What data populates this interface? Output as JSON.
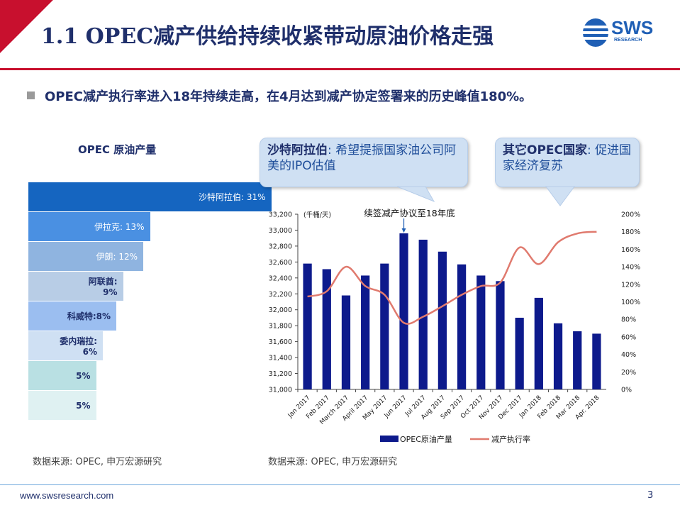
{
  "header": {
    "title": "1.1 OPEC减产供给持续收紧带动原油价格走强",
    "logo_text": "SWS",
    "logo_sub": "RESEARCH",
    "accent_color": "#c8102e",
    "title_color": "#1f2f6b"
  },
  "bullet": "OPEC减产执行率进入18年持续走高，在4月达到减产协定签署来的历史峰值180%。",
  "left_panel": {
    "title": "OPEC 原油产量",
    "bars": [
      {
        "label": "沙特阿拉伯:  31%",
        "share": 31,
        "color": "#1565c0",
        "text_color": "#ffffff"
      },
      {
        "label": "伊拉克: 13%",
        "share": 13,
        "color": "#4a90e2",
        "text_color": "#ffffff"
      },
      {
        "label": "伊朗: 12%",
        "share": 12,
        "color": "#8fb4e0",
        "text_color": "#ffffff"
      },
      {
        "label_line1": "阿联酋:",
        "label_line2": "9%",
        "share": 9,
        "color": "#b8cde6",
        "text_color": "#1f2f6b"
      },
      {
        "label": "科威特:8%",
        "share": 8,
        "color": "#9bbef0",
        "text_color": "#1f2f6b"
      },
      {
        "label_line1": "委内瑞拉:",
        "label_line2": "6%",
        "share": 6,
        "color": "#cfe0f3",
        "text_color": "#1f2f6b"
      },
      {
        "label": "5%",
        "share": 5,
        "color": "#b9e0e3",
        "text_color": "#1f2f6b"
      },
      {
        "label": "5%",
        "share": 5,
        "color": "#dff1f2",
        "text_color": "#1f2f6b"
      }
    ],
    "source": "数据来源: OPEC, 申万宏源研究"
  },
  "callouts": {
    "saudi_bold": "沙特阿拉伯",
    "saudi_text": ": 希望提振国家油公司阿美的IPO估值",
    "others_bold": "其它OPEC国家",
    "others_text": ": 促进国家经济复苏"
  },
  "chart_data": {
    "type": "bar",
    "categories": [
      "Jan 2017",
      "Feb 2017",
      "March 2017",
      "April 2017",
      "May 2017",
      "Jun 2017",
      "Jul 2017",
      "Aug 2017",
      "Sep 2017",
      "Oct 2017",
      "Nov 2017",
      "Dec 2017",
      "Jan 2018",
      "Feb 2018",
      "Mar 2018",
      "Apr. 2018"
    ],
    "series": [
      {
        "name": "OPEC原油产量",
        "type": "bar",
        "axis": "left",
        "color": "#0d1a8c",
        "values": [
          32580,
          32510,
          32180,
          32430,
          32580,
          32960,
          32880,
          32730,
          32570,
          32430,
          32360,
          31900,
          32150,
          31830,
          31730,
          31700
        ]
      },
      {
        "name": "减产执行率",
        "type": "line",
        "axis": "right",
        "color": "#e07a6e",
        "values": [
          106,
          112,
          140,
          118,
          108,
          76,
          83,
          95,
          108,
          118,
          122,
          162,
          143,
          168,
          178,
          180
        ]
      }
    ],
    "ylabel": "(千桶/天)",
    "ylim": [
      31000,
      33200
    ],
    "yticks": [
      "31,000",
      "31,200",
      "31,400",
      "31,600",
      "31,800",
      "32,000",
      "32,200",
      "32,400",
      "32,600",
      "32,800",
      "33,000",
      "33,200"
    ],
    "y2lim": [
      0,
      200
    ],
    "y2ticks": [
      "0%",
      "20%",
      "40%",
      "60%",
      "80%",
      "100%",
      "120%",
      "140%",
      "160%",
      "180%",
      "200%"
    ],
    "annotation": "续签减产协议至18年底",
    "annotation_category_index": 5,
    "legend_position": "bottom",
    "source": "数据来源: OPEC, 申万宏源研究"
  },
  "footer": {
    "url": "www.swsresearch.com",
    "page": "3"
  }
}
